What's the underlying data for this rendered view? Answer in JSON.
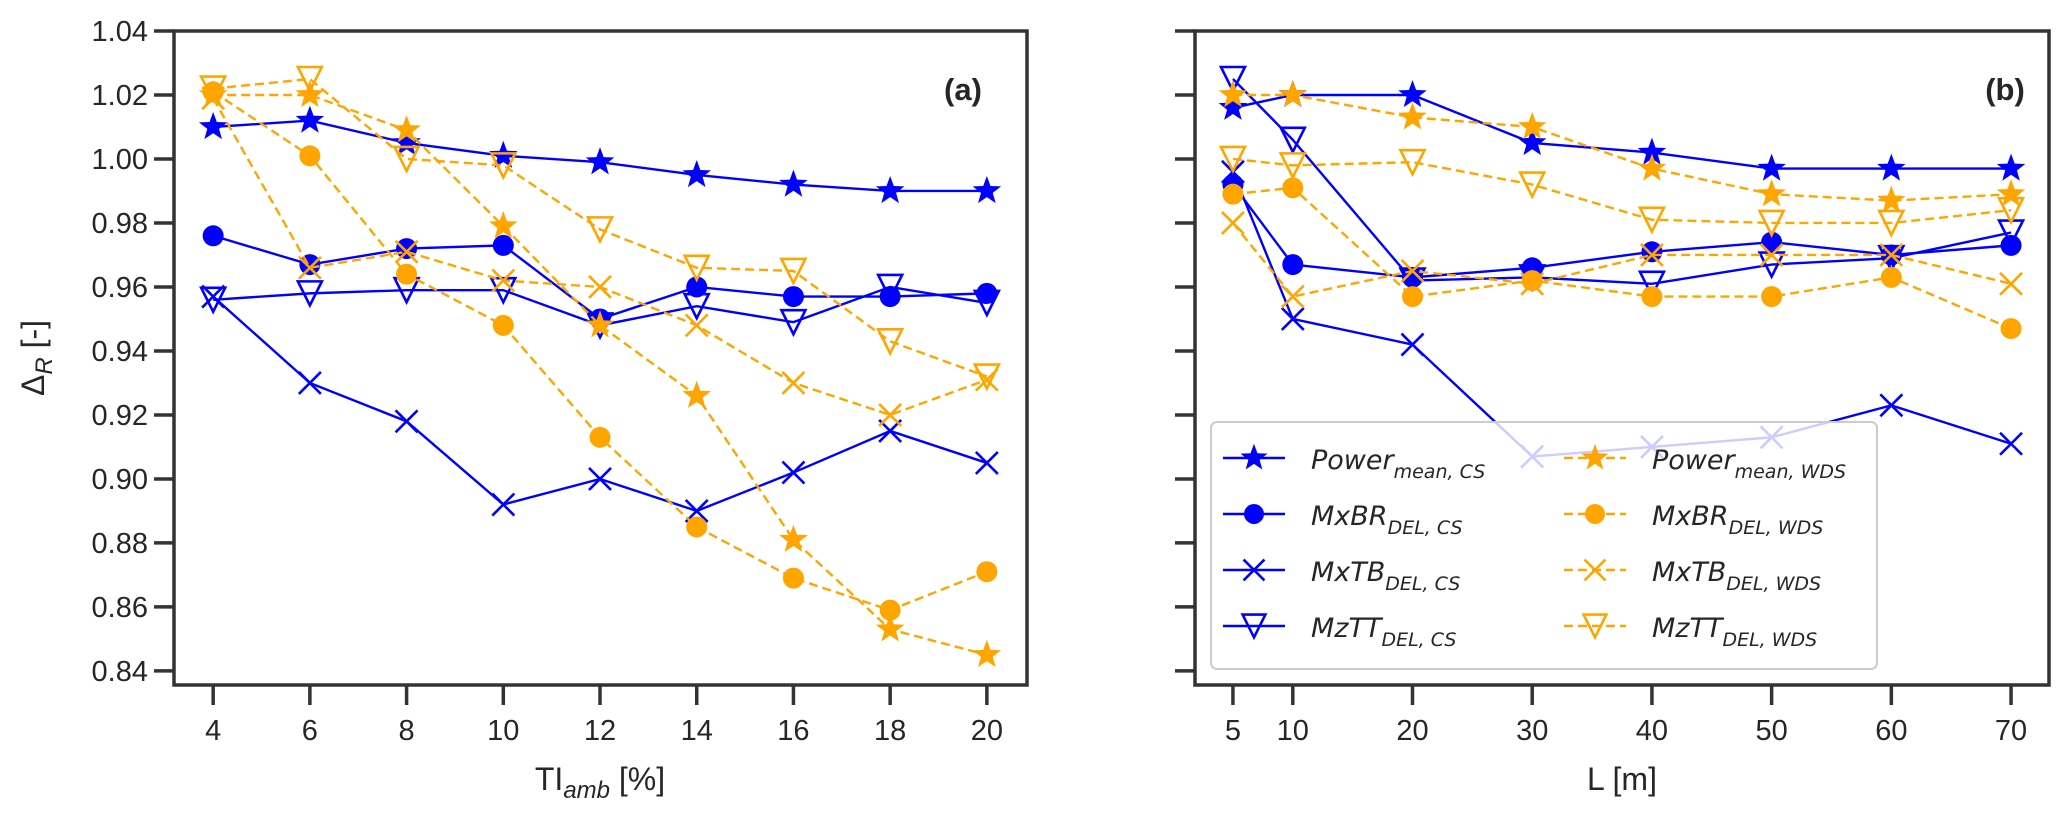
{
  "figure": {
    "colors": {
      "cs": "#0000ff",
      "wds": "#ffa500",
      "axis": "#333333",
      "text": "#262626",
      "legend_border": "#cccccc"
    }
  },
  "chart_data": [
    {
      "panel": "(a)",
      "type": "line",
      "title": "",
      "xlabel": "TI",
      "xlabel_sub": "amb",
      "xlabel_suffix": " [%]",
      "ylabel": "Δ",
      "ylabel_sub": "R",
      "ylabel_suffix": " [-]",
      "x": [
        4,
        6,
        8,
        10,
        12,
        14,
        16,
        18,
        20
      ],
      "xticks": [
        4,
        6,
        8,
        10,
        12,
        14,
        16,
        18,
        20
      ],
      "yticks": [
        0.84,
        0.86,
        0.88,
        0.9,
        0.92,
        0.94,
        0.96,
        0.98,
        1.0,
        1.02,
        1.04
      ],
      "ytick_labels": [
        "0.84",
        "0.86",
        "0.88",
        "0.90",
        "0.92",
        "0.94",
        "0.96",
        "0.98",
        "1.00",
        "1.02",
        "1.04"
      ],
      "xlim": [
        3.19,
        20.83
      ],
      "ylim": [
        0.8356,
        1.04
      ],
      "grid": false,
      "series": [
        {
          "name": "Power_mean,CS",
          "group": "cs",
          "marker": "star",
          "values": [
            1.01,
            1.012,
            1.005,
            1.001,
            0.999,
            0.995,
            0.992,
            0.99,
            0.99
          ]
        },
        {
          "name": "MxBR_DEL,CS",
          "group": "cs",
          "marker": "circle",
          "values": [
            0.976,
            0.967,
            0.972,
            0.973,
            0.95,
            0.96,
            0.957,
            0.957,
            0.958
          ]
        },
        {
          "name": "MxTB_DEL,CS",
          "group": "cs",
          "marker": "x",
          "values": [
            0.957,
            0.93,
            0.918,
            0.892,
            0.9,
            0.89,
            0.902,
            0.915,
            0.905
          ]
        },
        {
          "name": "MzTT_DEL,CS",
          "group": "cs",
          "marker": "triangle_down",
          "values": [
            0.956,
            0.958,
            0.959,
            0.959,
            0.948,
            0.954,
            0.949,
            0.96,
            0.955
          ]
        },
        {
          "name": "Power_mean,WDS",
          "group": "wds",
          "marker": "star",
          "values": [
            1.02,
            1.02,
            1.009,
            0.979,
            0.948,
            0.926,
            0.881,
            0.853,
            0.845
          ]
        },
        {
          "name": "MxBR_DEL,WDS",
          "group": "wds",
          "marker": "circle",
          "values": [
            1.021,
            1.001,
            0.964,
            0.948,
            0.913,
            0.885,
            0.869,
            0.859,
            0.871
          ]
        },
        {
          "name": "MxTB_DEL,WDS",
          "group": "wds",
          "marker": "x",
          "values": [
            1.019,
            0.966,
            0.971,
            0.962,
            0.96,
            0.948,
            0.93,
            0.92,
            0.931
          ]
        },
        {
          "name": "MzTT_DEL,WDS",
          "group": "wds",
          "marker": "triangle_down",
          "values": [
            1.022,
            1.025,
            1.0,
            0.998,
            0.978,
            0.966,
            0.965,
            0.943,
            0.932
          ]
        }
      ]
    },
    {
      "panel": "(b)",
      "type": "line",
      "title": "",
      "xlabel": "L [m]",
      "ylabel": "",
      "x": [
        5,
        10,
        20,
        30,
        40,
        50,
        60,
        70
      ],
      "xticks": [
        5,
        10,
        20,
        30,
        40,
        50,
        60,
        70
      ],
      "yticks": [
        0.84,
        0.86,
        0.88,
        0.9,
        0.92,
        0.94,
        0.96,
        0.98,
        1.0,
        1.02,
        1.04
      ],
      "ytick_labels": [],
      "xlim": [
        1.83,
        73.17
      ],
      "ylim": [
        0.8356,
        1.04
      ],
      "grid": false,
      "legend_position": "lower-left",
      "series": [
        {
          "name": "Power_mean,CS",
          "group": "cs",
          "marker": "star",
          "values": [
            1.016,
            1.02,
            1.02,
            1.005,
            1.002,
            0.997,
            0.997,
            0.997
          ]
        },
        {
          "name": "MxBR_DEL,CS",
          "group": "cs",
          "marker": "circle",
          "values": [
            0.992,
            0.967,
            0.963,
            0.966,
            0.971,
            0.974,
            0.97,
            0.973
          ]
        },
        {
          "name": "MxTB_DEL,CS",
          "group": "cs",
          "marker": "x",
          "values": [
            0.996,
            0.95,
            0.942,
            0.907,
            0.91,
            0.913,
            0.923,
            0.911
          ]
        },
        {
          "name": "MzTT_DEL,CS",
          "group": "cs",
          "marker": "triangle_down",
          "values": [
            1.025,
            1.006,
            0.962,
            0.963,
            0.961,
            0.967,
            0.969,
            0.977
          ]
        },
        {
          "name": "Power_mean,WDS",
          "group": "wds",
          "marker": "star",
          "values": [
            1.02,
            1.02,
            1.013,
            1.01,
            0.997,
            0.989,
            0.987,
            0.989
          ]
        },
        {
          "name": "MxBR_DEL,WDS",
          "group": "wds",
          "marker": "circle",
          "values": [
            0.989,
            0.991,
            0.957,
            0.962,
            0.957,
            0.957,
            0.963,
            0.947
          ]
        },
        {
          "name": "MxTB_DEL,WDS",
          "group": "wds",
          "marker": "x",
          "values": [
            0.98,
            0.957,
            0.965,
            0.961,
            0.97,
            0.97,
            0.97,
            0.961
          ]
        },
        {
          "name": "MzTT_DEL,WDS",
          "group": "wds",
          "marker": "triangle_down",
          "values": [
            1.0,
            0.998,
            0.999,
            0.992,
            0.981,
            0.98,
            0.98,
            0.984
          ]
        }
      ]
    }
  ],
  "legend": {
    "columns": 2,
    "entries": [
      {
        "series": "Power_mean,CS",
        "main": "Power",
        "sub": "mean, CS",
        "group": "cs",
        "marker": "star"
      },
      {
        "series": "MxBR_DEL,CS",
        "main": "MxBR",
        "sub": "DEL, CS",
        "group": "cs",
        "marker": "circle"
      },
      {
        "series": "MxTB_DEL,CS",
        "main": "MxTB",
        "sub": "DEL, CS",
        "group": "cs",
        "marker": "x"
      },
      {
        "series": "MzTT_DEL,CS",
        "main": "MzTT",
        "sub": "DEL, CS",
        "group": "cs",
        "marker": "triangle_down"
      },
      {
        "series": "Power_mean,WDS",
        "main": "Power",
        "sub": "mean, WDS",
        "group": "wds",
        "marker": "star"
      },
      {
        "series": "MxBR_DEL,WDS",
        "main": "MxBR",
        "sub": "DEL, WDS",
        "group": "wds",
        "marker": "circle"
      },
      {
        "series": "MxTB_DEL,WDS",
        "main": "MxTB",
        "sub": "DEL, WDS",
        "group": "wds",
        "marker": "x"
      },
      {
        "series": "MzTT_DEL,WDS",
        "main": "MzTT",
        "sub": "DEL, WDS",
        "group": "wds",
        "marker": "triangle_down"
      }
    ]
  }
}
